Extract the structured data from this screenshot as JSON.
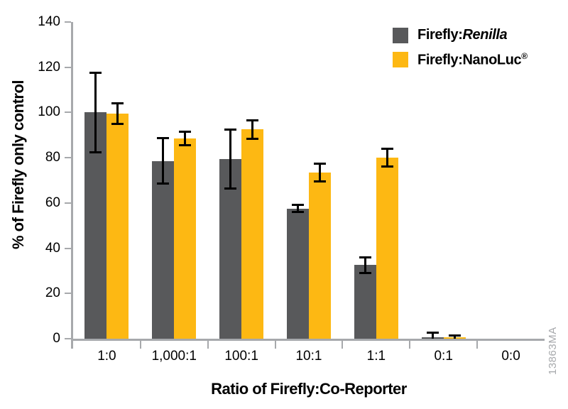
{
  "chart_data": {
    "type": "bar",
    "title": "",
    "categories": [
      "1:0",
      "1,000:1",
      "100:1",
      "10:1",
      "1:1",
      "0:1",
      "0:0"
    ],
    "series": [
      {
        "name": "Firefly:Renilla",
        "name_parts": {
          "prefix": "Firefly:",
          "italic": "Renilla"
        },
        "color": "#58595B",
        "values": [
          100,
          78.5,
          79.5,
          57.5,
          32.5,
          0.5,
          0
        ],
        "errors": [
          18,
          10.5,
          13.5,
          2,
          4,
          2.5,
          null
        ]
      },
      {
        "name": "Firefly:NanoLuc®",
        "name_parts": {
          "prefix": "Firefly:NanoLuc",
          "sup": "®"
        },
        "color": "#FDB813",
        "values": [
          99.5,
          88.5,
          92.5,
          73.5,
          80,
          0.5,
          0
        ],
        "errors": [
          5,
          3.5,
          4.5,
          4.5,
          4.5,
          1.5,
          null
        ]
      }
    ],
    "xlabel": "Ratio of Firefly:Co-Reporter",
    "ylabel": "% of Firefly only control",
    "ylim": [
      0,
      140
    ],
    "yticks": [
      0,
      20,
      40,
      60,
      80,
      100,
      120,
      140
    ],
    "grid": false,
    "legend_position": "top-right",
    "error_bars": true,
    "axis_color": "#A7A9AC",
    "error_bar_color": "#000000"
  },
  "watermark": "13863MA"
}
